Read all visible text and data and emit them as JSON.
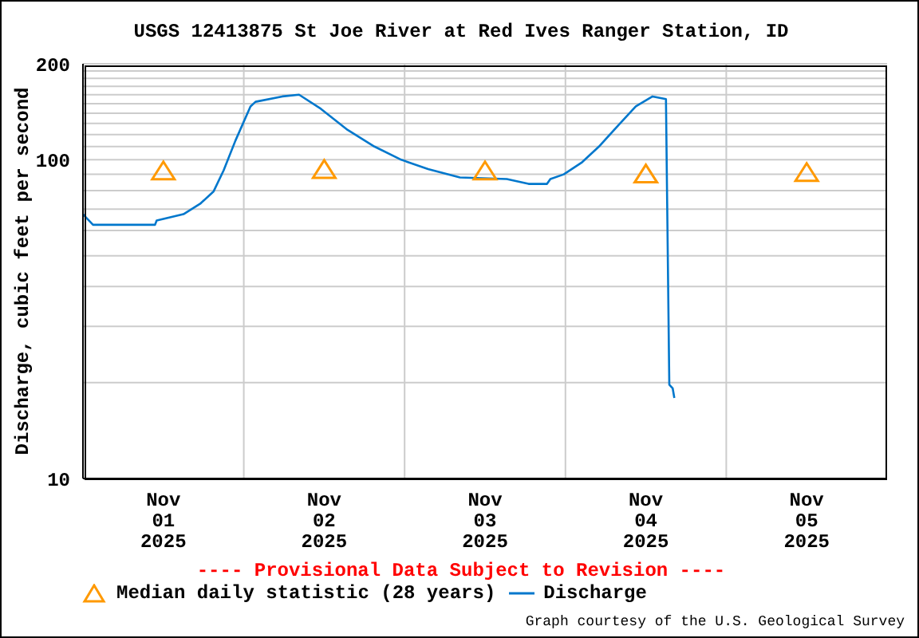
{
  "chart_data": {
    "type": "line",
    "title": "USGS 12413875 St Joe River at Red Ives Ranger Station, ID",
    "ylabel": "Discharge, cubic feet per second",
    "log": "y",
    "grid": true,
    "legend": "bottom",
    "xlim": [
      "2025-11-01T00:00",
      "2025-11-06T00:00"
    ],
    "xticks": [
      {
        "value": "2025-11-01T12:00",
        "label": "Nov 01 2025"
      },
      {
        "value": "2025-11-02T00:00",
        "label": null
      },
      {
        "value": "2025-11-02T12:00",
        "label": "Nov 02 2025"
      },
      {
        "value": "2025-11-03T00:00",
        "label": null
      },
      {
        "value": "2025-11-03T12:00",
        "label": "Nov 03 2025"
      },
      {
        "value": "2025-11-04T00:00",
        "label": null
      },
      {
        "value": "2025-11-04T12:00",
        "label": "Nov 04 2025"
      },
      {
        "value": "2025-11-05T00:00",
        "label": null
      },
      {
        "value": "2025-11-05T12:00",
        "label": "Nov 05 2025"
      }
    ],
    "ylim": [
      10,
      200
    ],
    "yticks": [
      10,
      {
        "value": 20,
        "label": null
      },
      {
        "value": 30,
        "label": null
      },
      {
        "value": 40,
        "label": null
      },
      {
        "value": 50,
        "label": null
      },
      {
        "value": 60,
        "label": null
      },
      {
        "value": 70,
        "label": null
      },
      {
        "value": 80,
        "label": null
      },
      {
        "value": 90,
        "label": null
      },
      100,
      {
        "value": 110,
        "label": null
      },
      {
        "value": 120,
        "label": null
      },
      {
        "value": 130,
        "label": null
      },
      {
        "value": 140,
        "label": null
      },
      {
        "value": 150,
        "label": null
      },
      {
        "value": 160,
        "label": null
      },
      {
        "value": 170,
        "label": null
      },
      {
        "value": 180,
        "label": null
      },
      {
        "value": 190,
        "label": null
      },
      200
    ],
    "series": [
      {
        "name": "Median daily statistic (28 years)",
        "type": "scatter",
        "marker": "triangle",
        "color": "#ff9900",
        "x": [
          "2025-11-01T12:00",
          "2025-11-02T12:00",
          "2025-11-03T12:00",
          "2025-11-04T12:00",
          "2025-11-05T12:00"
        ],
        "values": [
          92,
          93,
          92,
          90,
          91
        ]
      },
      {
        "name": "Discharge",
        "marker": "none",
        "line_style": "solid",
        "color": "#0077cc",
        "x": [
          "2025-11-01T00:00",
          "2025-11-01T01:30",
          "2025-11-01T10:45",
          "2025-11-01T11:00",
          "2025-11-01T15:00",
          "2025-11-01T17:30",
          "2025-11-01T19:30",
          "2025-11-01T21:00",
          "2025-11-01T22:45",
          "2025-11-02T01:00",
          "2025-11-02T01:45",
          "2025-11-02T05:45",
          "2025-11-02T08:15",
          "2025-11-02T11:30",
          "2025-11-02T15:30",
          "2025-11-02T19:30",
          "2025-11-02T23:30",
          "2025-11-03T03:30",
          "2025-11-03T08:15",
          "2025-11-03T15:15",
          "2025-11-03T18:30",
          "2025-11-03T21:15",
          "2025-11-03T21:45",
          "2025-11-03T23:45",
          "2025-11-04T02:30",
          "2025-11-04T05:00",
          "2025-11-04T08:00",
          "2025-11-04T10:30",
          "2025-11-04T13:00",
          "2025-11-04T15:00",
          "2025-11-04T15:15",
          "2025-11-04T15:30",
          "2025-11-04T16:00",
          "2025-11-04T16:15"
        ],
        "values": [
          67.5,
          62.5,
          62.5,
          64.5,
          67.5,
          72.8,
          79.6,
          92.7,
          114.8,
          147,
          152,
          158,
          160,
          144.5,
          124,
          110,
          100,
          93.5,
          88,
          87,
          84,
          84,
          87,
          90,
          98.3,
          110,
          129,
          147,
          158,
          155,
          55.2,
          19.7,
          19.2,
          17.9
        ]
      }
    ],
    "annotations": [
      "---- Provisional Data Subject to Revision ----",
      "Graph courtesy of the U.S. Geological Survey"
    ]
  }
}
